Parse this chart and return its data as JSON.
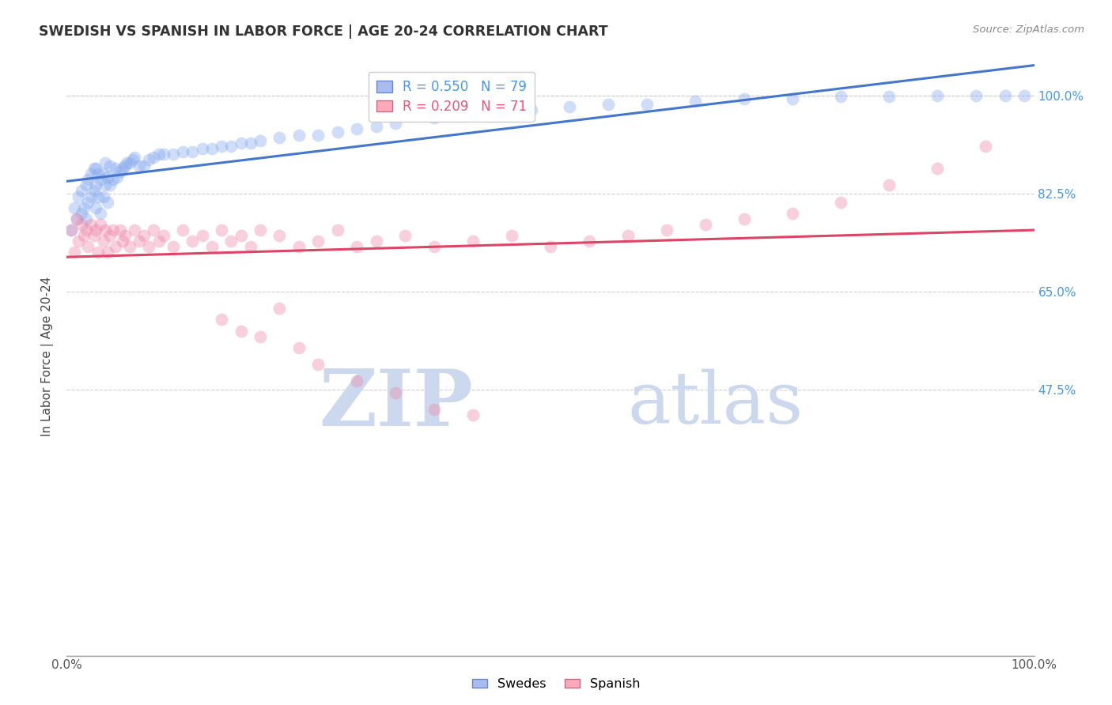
{
  "title": "SWEDISH VS SPANISH IN LABOR FORCE | AGE 20-24 CORRELATION CHART",
  "source": "Source: ZipAtlas.com",
  "ylabel": "In Labor Force | Age 20-24",
  "xlim": [
    0.0,
    1.0
  ],
  "ylim": [
    0.0,
    1.05
  ],
  "ytick_labels": [
    "100.0%",
    "82.5%",
    "65.0%",
    "47.5%"
  ],
  "ytick_positions": [
    1.0,
    0.825,
    0.65,
    0.475
  ],
  "legend_blue_text": "R = 0.550   N = 79",
  "legend_pink_text": "R = 0.209   N = 71",
  "legend_text_color_blue": "#4499ee",
  "legend_text_color_pink": "#ee5577",
  "watermark_zip": "ZIP",
  "watermark_atlas": "atlas",
  "watermark_color": "#ccd8ee",
  "blue_scatter_color": "#88aaee",
  "pink_scatter_color": "#ee88aa",
  "blue_line_color": "#4477cc",
  "pink_line_color": "#dd4466",
  "background_color": "#ffffff",
  "grid_color": "#cccccc",
  "title_color": "#333333",
  "tick_label_color_right": "#4499ee",
  "swedes_x": [
    0.005,
    0.008,
    0.01,
    0.012,
    0.015,
    0.015,
    0.018,
    0.02,
    0.02,
    0.022,
    0.022,
    0.025,
    0.025,
    0.028,
    0.028,
    0.03,
    0.03,
    0.03,
    0.032,
    0.032,
    0.035,
    0.035,
    0.038,
    0.038,
    0.04,
    0.04,
    0.042,
    0.042,
    0.045,
    0.045,
    0.048,
    0.05,
    0.052,
    0.055,
    0.058,
    0.06,
    0.062,
    0.065,
    0.068,
    0.07,
    0.075,
    0.08,
    0.085,
    0.09,
    0.095,
    0.1,
    0.11,
    0.12,
    0.13,
    0.14,
    0.15,
    0.16,
    0.17,
    0.18,
    0.19,
    0.2,
    0.22,
    0.24,
    0.26,
    0.28,
    0.3,
    0.32,
    0.34,
    0.38,
    0.42,
    0.45,
    0.48,
    0.52,
    0.56,
    0.6,
    0.65,
    0.7,
    0.75,
    0.8,
    0.85,
    0.9,
    0.94,
    0.97,
    0.99
  ],
  "swedes_y": [
    0.76,
    0.8,
    0.78,
    0.82,
    0.79,
    0.83,
    0.8,
    0.78,
    0.84,
    0.81,
    0.85,
    0.82,
    0.86,
    0.83,
    0.87,
    0.8,
    0.84,
    0.87,
    0.82,
    0.86,
    0.79,
    0.85,
    0.82,
    0.86,
    0.84,
    0.88,
    0.81,
    0.855,
    0.84,
    0.875,
    0.85,
    0.87,
    0.855,
    0.865,
    0.87,
    0.875,
    0.88,
    0.88,
    0.885,
    0.89,
    0.875,
    0.875,
    0.885,
    0.89,
    0.895,
    0.895,
    0.895,
    0.9,
    0.9,
    0.905,
    0.905,
    0.91,
    0.91,
    0.915,
    0.915,
    0.92,
    0.925,
    0.93,
    0.93,
    0.935,
    0.94,
    0.945,
    0.95,
    0.96,
    0.965,
    0.97,
    0.975,
    0.98,
    0.985,
    0.985,
    0.99,
    0.995,
    0.995,
    0.998,
    0.999,
    1.0,
    1.0,
    1.0,
    1.0
  ],
  "spanish_x": [
    0.005,
    0.008,
    0.01,
    0.012,
    0.015,
    0.018,
    0.02,
    0.022,
    0.025,
    0.028,
    0.03,
    0.032,
    0.035,
    0.038,
    0.04,
    0.042,
    0.045,
    0.048,
    0.05,
    0.055,
    0.058,
    0.06,
    0.065,
    0.07,
    0.075,
    0.08,
    0.085,
    0.09,
    0.095,
    0.1,
    0.11,
    0.12,
    0.13,
    0.14,
    0.15,
    0.16,
    0.17,
    0.18,
    0.19,
    0.2,
    0.22,
    0.24,
    0.26,
    0.28,
    0.3,
    0.32,
    0.35,
    0.38,
    0.42,
    0.46,
    0.5,
    0.54,
    0.58,
    0.62,
    0.66,
    0.7,
    0.75,
    0.8,
    0.85,
    0.9,
    0.95,
    0.16,
    0.18,
    0.2,
    0.22,
    0.24,
    0.26,
    0.3,
    0.34,
    0.38,
    0.42
  ],
  "spanish_y": [
    0.76,
    0.72,
    0.78,
    0.74,
    0.77,
    0.75,
    0.76,
    0.73,
    0.77,
    0.75,
    0.76,
    0.72,
    0.77,
    0.74,
    0.76,
    0.72,
    0.75,
    0.76,
    0.73,
    0.76,
    0.74,
    0.75,
    0.73,
    0.76,
    0.74,
    0.75,
    0.73,
    0.76,
    0.74,
    0.75,
    0.73,
    0.76,
    0.74,
    0.75,
    0.73,
    0.76,
    0.74,
    0.75,
    0.73,
    0.76,
    0.75,
    0.73,
    0.74,
    0.76,
    0.73,
    0.74,
    0.75,
    0.73,
    0.74,
    0.75,
    0.73,
    0.74,
    0.75,
    0.76,
    0.77,
    0.78,
    0.79,
    0.81,
    0.84,
    0.87,
    0.91,
    0.6,
    0.58,
    0.57,
    0.62,
    0.55,
    0.52,
    0.49,
    0.47,
    0.44,
    0.43
  ]
}
